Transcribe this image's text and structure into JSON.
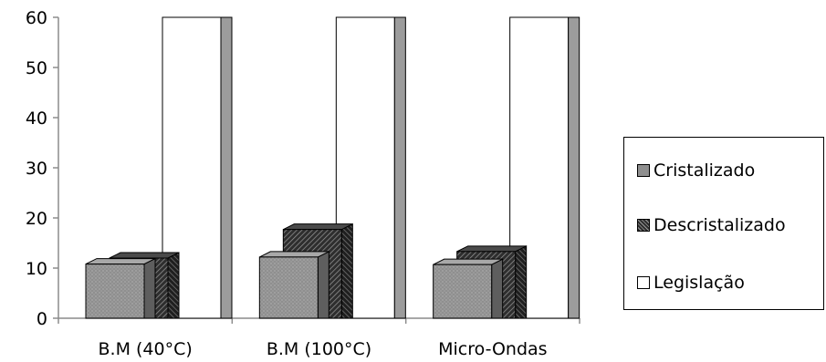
{
  "chart_data": {
    "type": "bar",
    "style": "3d-clustered",
    "categories": [
      "B.M (40°C)",
      "B.M (100°C)",
      "Micro-Ondas"
    ],
    "series": [
      {
        "name": "Cristalizado",
        "values": [
          10.8,
          12.2,
          10.7
        ],
        "color": "#8f8f8f",
        "pattern": "dotted"
      },
      {
        "name": "Descristalizado",
        "values": [
          12.0,
          17.7,
          13.3
        ],
        "color": "#3a3a3a",
        "pattern": "diagonal-hatch"
      },
      {
        "name": "Legislação",
        "values": [
          60,
          60,
          60
        ],
        "color": "#ffffff",
        "pattern": "none"
      }
    ],
    "yticks": [
      "0",
      "10",
      "20",
      "30",
      "40",
      "50",
      "60"
    ],
    "ylim": [
      0,
      60
    ],
    "grid": false,
    "legend_position": "right"
  }
}
